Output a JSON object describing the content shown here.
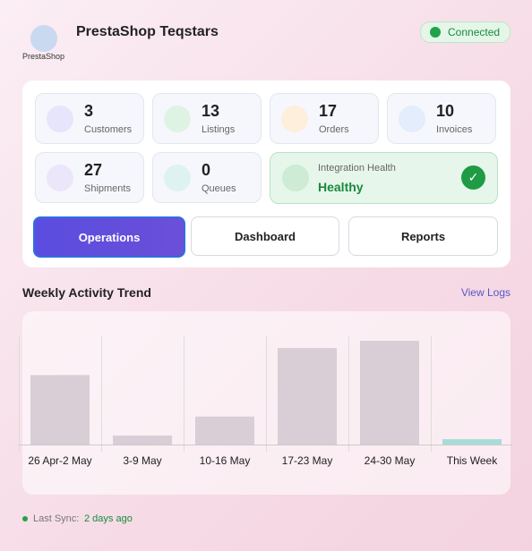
{
  "header": {
    "title": "PrestaShop Teqstars",
    "logo_text": "PrestaShop",
    "status": "Connected"
  },
  "stats": [
    {
      "value": 3,
      "label": "Customers"
    },
    {
      "value": 13,
      "label": "Listings"
    },
    {
      "value": 17,
      "label": "Orders"
    },
    {
      "value": 10,
      "label": "Invoices"
    },
    {
      "value": 27,
      "label": "Shipments"
    },
    {
      "value": 0,
      "label": "Queues"
    }
  ],
  "health": {
    "label": "Integration Health",
    "status": "Healthy"
  },
  "buttons": [
    "Operations",
    "Dashboard",
    "Reports"
  ],
  "section": {
    "title": "Weekly Activity Trend",
    "link": "View Logs"
  },
  "chart_data": {
    "type": "bar",
    "categories": [
      "26 Apr-2 May",
      "3-9 May",
      "10-16 May",
      "17-23 May",
      "24-30 May",
      "This Week"
    ],
    "values": [
      77,
      10,
      31,
      107,
      115,
      6
    ],
    "colors": [
      "#d9cdd6",
      "#d9cdd6",
      "#d9cdd6",
      "#d9cdd6",
      "#d9cdd6",
      "#a8dcd9"
    ],
    "ylim": [
      0,
      120
    ]
  },
  "footer": {
    "label": "Last Sync:",
    "value": "2 days ago"
  }
}
